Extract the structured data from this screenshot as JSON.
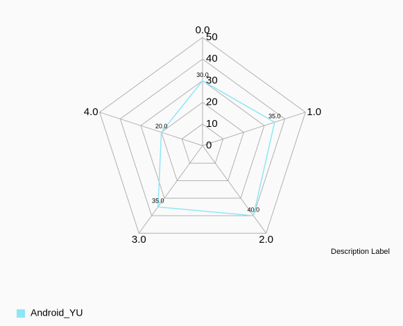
{
  "chart_data": {
    "type": "radar",
    "categories": [
      "0.0",
      "1.0",
      "2.0",
      "3.0",
      "4.0"
    ],
    "series": [
      {
        "name": "Android_YU",
        "color": "#8de6f8",
        "values": [
          30,
          35,
          40,
          35,
          20
        ],
        "value_labels": [
          "30.0",
          "35.0",
          "40.0",
          "35.0",
          "20.0"
        ]
      }
    ],
    "ylim": [
      0,
      50
    ],
    "yticks": [
      0,
      10,
      20,
      30,
      40,
      50
    ],
    "description": "Description Label",
    "legend": "bottom-left",
    "web_color": "#b0b0b0"
  }
}
